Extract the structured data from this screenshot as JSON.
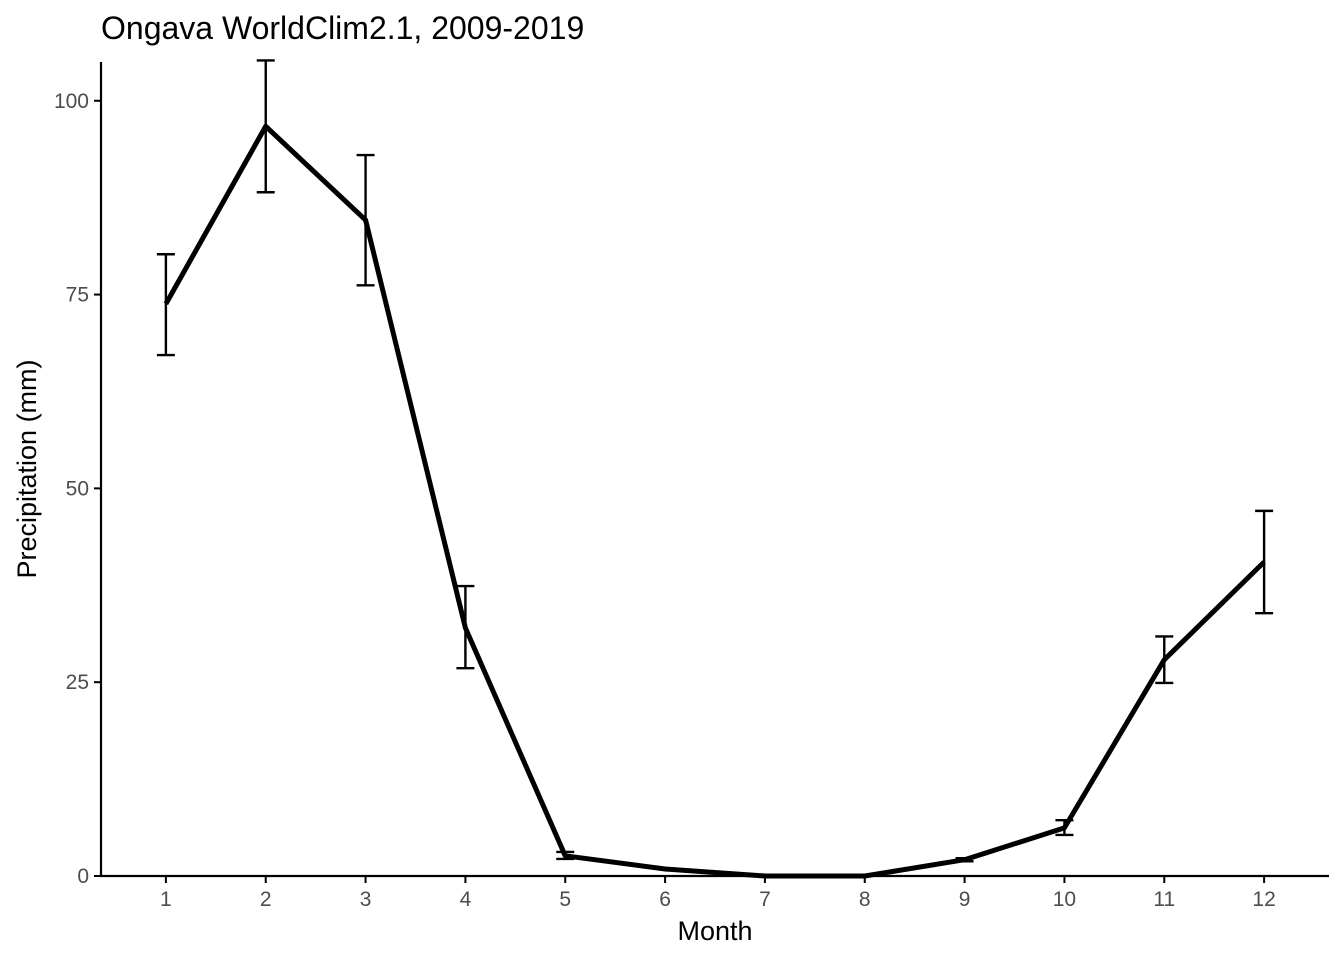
{
  "chart_data": {
    "type": "line",
    "title": "Ongava WorldClim2.1, 2009-2019",
    "xlabel": "Month",
    "ylabel": "Precipitation (mm)",
    "x": [
      1,
      2,
      3,
      4,
      5,
      6,
      7,
      8,
      9,
      10,
      11,
      12
    ],
    "x_tick_labels": [
      "1",
      "2",
      "3",
      "4",
      "5",
      "6",
      "7",
      "8",
      "9",
      "10",
      "11",
      "12"
    ],
    "y_ticks": [
      0,
      25,
      50,
      75,
      100
    ],
    "y_tick_labels": [
      "0",
      "25",
      "50",
      "75",
      "100"
    ],
    "xlim": [
      0.35,
      12.65
    ],
    "ylim": [
      0,
      105
    ],
    "grid": false,
    "legend": "none",
    "line_color": "#000000",
    "series": [
      {
        "values": [
          73.8,
          96.7,
          84.6,
          32.0,
          2.6,
          0.9,
          0.0,
          0.0,
          2.1,
          6.2,
          27.9,
          40.5
        ],
        "error_low": [
          67.2,
          88.2,
          76.2,
          26.8,
          2.2,
          0.9,
          0.0,
          0.0,
          1.9,
          5.3,
          24.9,
          33.9
        ],
        "error_high": [
          80.2,
          105.2,
          93.0,
          37.4,
          3.1,
          0.9,
          0.0,
          0.0,
          2.3,
          7.2,
          30.9,
          47.1
        ]
      }
    ]
  }
}
